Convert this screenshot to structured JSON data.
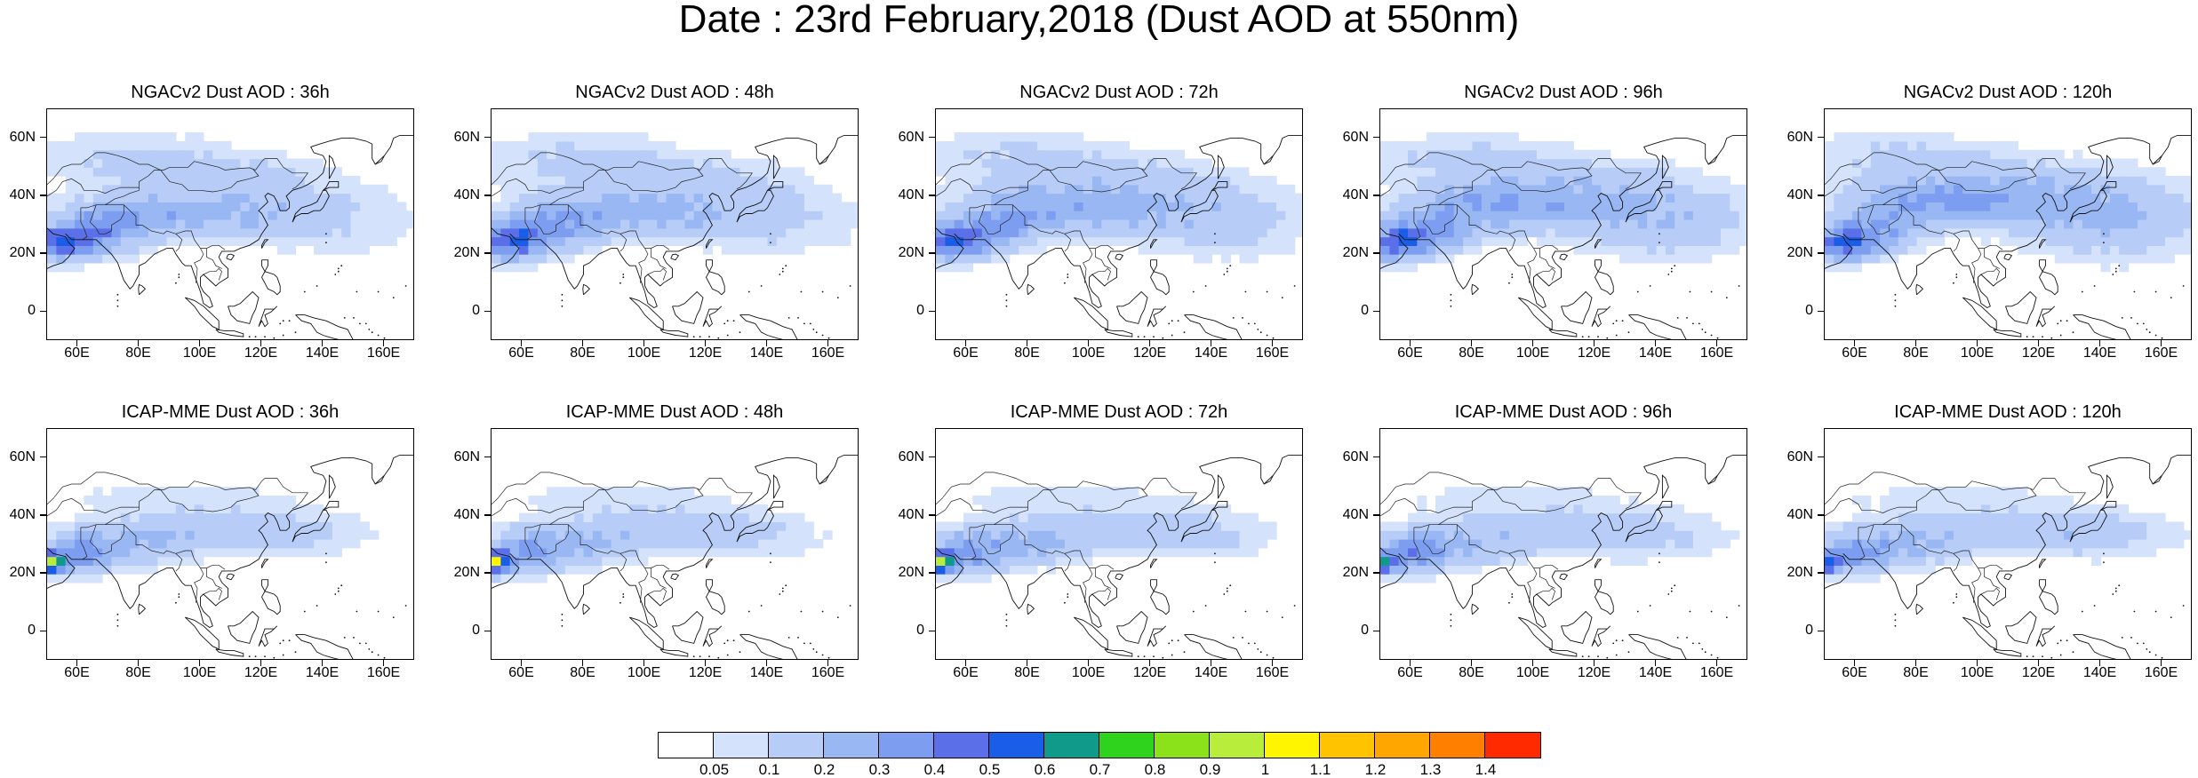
{
  "title": "Date : 23rd February,2018 (Dust AOD at 550nm)",
  "panels": [
    {
      "title": "NGACv2 Dust AOD : 36h",
      "model": "ngac",
      "lead": 36
    },
    {
      "title": "NGACv2 Dust AOD : 48h",
      "model": "ngac",
      "lead": 48
    },
    {
      "title": "NGACv2 Dust AOD : 72h",
      "model": "ngac",
      "lead": 72
    },
    {
      "title": "NGACv2 Dust AOD : 96h",
      "model": "ngac",
      "lead": 96
    },
    {
      "title": "NGACv2 Dust AOD : 120h",
      "model": "ngac",
      "lead": 120
    },
    {
      "title": "ICAP-MME Dust AOD : 36h",
      "model": "icap",
      "lead": 36
    },
    {
      "title": "ICAP-MME Dust AOD : 48h",
      "model": "icap",
      "lead": 48
    },
    {
      "title": "ICAP-MME Dust AOD : 72h",
      "model": "icap",
      "lead": 72
    },
    {
      "title": "ICAP-MME Dust AOD : 96h",
      "model": "icap",
      "lead": 96
    },
    {
      "title": "ICAP-MME Dust AOD : 120h",
      "model": "icap",
      "lead": 120
    }
  ],
  "lat_ticks": [
    {
      "value": 0,
      "label": "0"
    },
    {
      "value": 20,
      "label": "20N"
    },
    {
      "value": 40,
      "label": "40N"
    },
    {
      "value": 60,
      "label": "60N"
    }
  ],
  "lon_ticks": [
    {
      "value": 60,
      "label": "60E"
    },
    {
      "value": 80,
      "label": "80E"
    },
    {
      "value": 100,
      "label": "100E"
    },
    {
      "value": 120,
      "label": "120E"
    },
    {
      "value": 140,
      "label": "140E"
    },
    {
      "value": 160,
      "label": "160E"
    }
  ],
  "lon_range": [
    50,
    170
  ],
  "lat_range": [
    -10,
    70
  ],
  "colorbar": {
    "labels": [
      "0.05",
      "0.1",
      "0.2",
      "0.3",
      "0.4",
      "0.5",
      "0.6",
      "0.7",
      "0.8",
      "0.9",
      "1",
      "1.1",
      "1.2",
      "1.3",
      "1.4"
    ],
    "colors": [
      "#ffffff",
      "#d4e2fb",
      "#b7cdf7",
      "#99b7f3",
      "#7d9ef0",
      "#5a6fe8",
      "#1a5ee8",
      "#0f9a8a",
      "#2fd21c",
      "#8be21a",
      "#b9ed3c",
      "#fff500",
      "#ffc300",
      "#ffa600",
      "#ff7f00",
      "#ff2a00"
    ]
  }
}
